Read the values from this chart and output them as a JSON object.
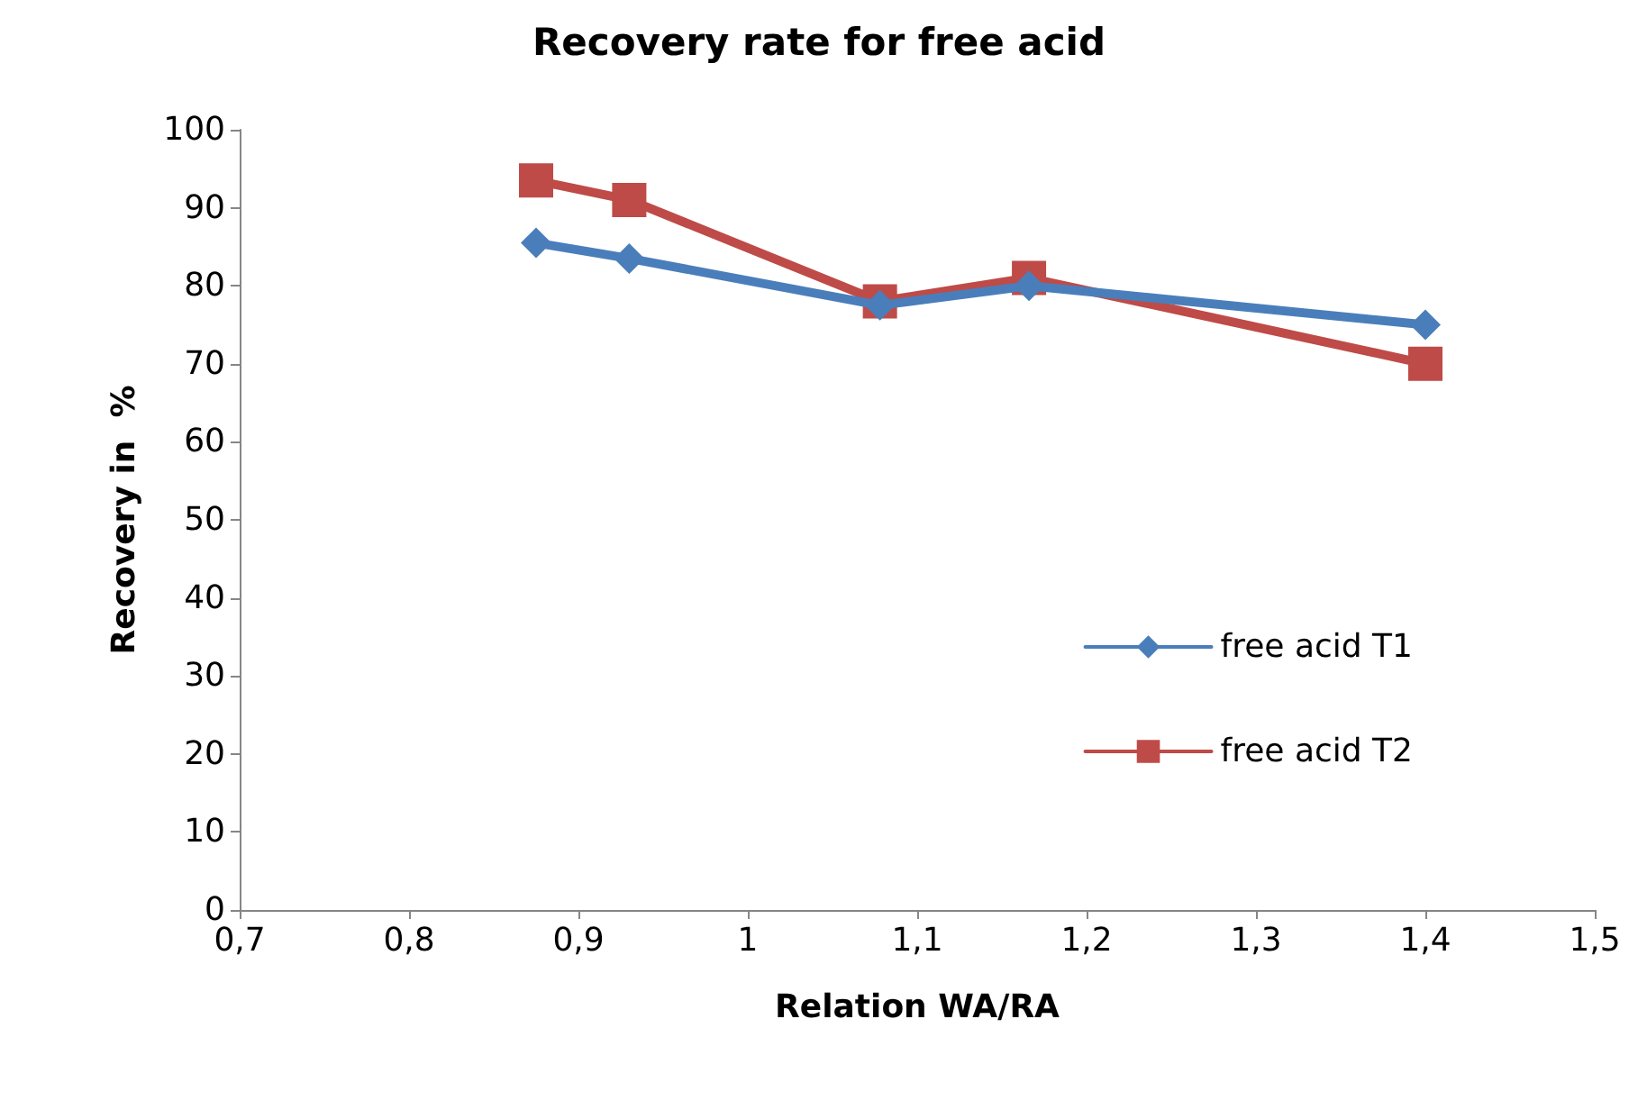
{
  "chart_data": {
    "type": "line",
    "title": "Recovery rate for free acid",
    "xlabel": "Relation WA/RA",
    "ylabel": "Recovery in  %",
    "xlim": [
      0.7,
      1.5
    ],
    "xticks": [
      {
        "value": 0.7,
        "label": "0,7"
      },
      {
        "value": 0.8,
        "label": "0,8"
      },
      {
        "value": 0.9,
        "label": "0,9"
      },
      {
        "value": 1,
        "label": "1"
      },
      {
        "value": 1.1,
        "label": "1,1"
      },
      {
        "value": 1.2,
        "label": "1,2"
      },
      {
        "value": 1.3,
        "label": "1,3"
      },
      {
        "value": 1.4,
        "label": "1,4"
      },
      {
        "value": 1.5,
        "label": "1,5"
      }
    ],
    "ylim": [
      0,
      100
    ],
    "yticks": [
      0,
      10,
      20,
      30,
      40,
      50,
      60,
      70,
      80,
      90,
      100
    ],
    "x": [
      0.875,
      0.93,
      1.078,
      1.166,
      1.4
    ],
    "series": [
      {
        "name": "free acid T1",
        "color": "#4a7ebb",
        "marker": "diamond",
        "values": [
          85.5,
          83.5,
          77.5,
          80,
          75
        ]
      },
      {
        "name": "free acid T2",
        "color": "#be4b48",
        "marker": "square",
        "values": [
          93.5,
          91,
          78,
          81,
          70
        ]
      }
    ],
    "grid": false,
    "legend": "right",
    "line_style": "solid"
  }
}
